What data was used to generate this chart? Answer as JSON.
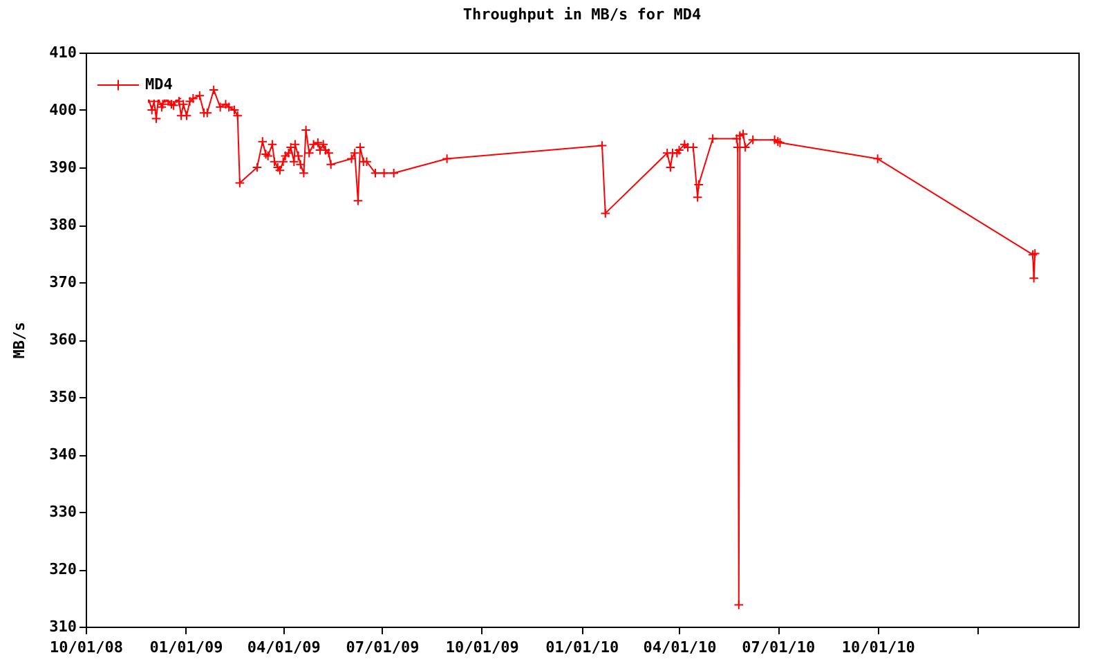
{
  "chart_data": {
    "type": "line",
    "title": "Throughput in MB/s for MD4",
    "ylabel": "MB/s",
    "x": [
      "2008-11-28",
      "2008-12-01",
      "2008-12-03",
      "2008-12-05",
      "2008-12-07",
      "2008-12-10",
      "2008-12-11",
      "2008-12-13",
      "2008-12-16",
      "2008-12-19",
      "2008-12-21",
      "2008-12-24",
      "2008-12-26",
      "2008-12-28",
      "2008-12-30",
      "2009-01-02",
      "2009-01-05",
      "2009-01-08",
      "2009-01-14",
      "2009-01-18",
      "2009-01-21",
      "2009-01-27",
      "2009-02-02",
      "2009-02-07",
      "2009-02-10",
      "2009-02-15",
      "2009-02-18",
      "2009-02-20",
      "2009-03-08",
      "2009-03-13",
      "2009-03-16",
      "2009-03-18",
      "2009-03-22",
      "2009-03-24",
      "2009-03-27",
      "2009-03-29",
      "2009-04-01",
      "2009-04-03",
      "2009-04-06",
      "2009-04-08",
      "2009-04-11",
      "2009-04-12",
      "2009-04-15",
      "2009-04-17",
      "2009-04-20",
      "2009-04-22",
      "2009-04-25",
      "2009-04-29",
      "2009-05-03",
      "2009-05-05",
      "2009-05-08",
      "2009-05-10",
      "2009-05-13",
      "2009-05-15",
      "2009-06-03",
      "2009-06-06",
      "2009-06-09",
      "2009-06-11",
      "2009-06-14",
      "2009-06-17",
      "2009-06-25",
      "2009-07-03",
      "2009-07-12",
      "2009-08-30",
      "2010-01-20",
      "2010-01-23",
      "2010-03-21",
      "2010-03-24",
      "2010-03-26",
      "2010-03-30",
      "2010-04-01",
      "2010-04-06",
      "2010-04-09",
      "2010-04-14",
      "2010-04-18",
      "2010-04-19",
      "2010-05-02",
      "2010-05-24",
      "2010-05-25",
      "2010-05-26",
      "2010-05-27",
      "2010-05-30",
      "2010-06-01",
      "2010-06-08",
      "2010-06-28",
      "2010-07-01",
      "2010-07-03",
      "2010-10-01",
      "2011-02-21",
      "2011-02-22",
      "2011-02-23"
    ],
    "series": [
      {
        "name": "MD4",
        "color": "#ff0000",
        "values": [
          402,
          400,
          401.5,
          398.5,
          402,
          400.5,
          401,
          402,
          401.5,
          401,
          400.8,
          402,
          401.5,
          399,
          401,
          399,
          401.5,
          402,
          402.5,
          399.5,
          399.5,
          403.5,
          400.5,
          401,
          400.5,
          400,
          399,
          387.3,
          390,
          394.5,
          392.3,
          392,
          394,
          391,
          390,
          389.5,
          391,
          392,
          392.5,
          393.5,
          391,
          394,
          392,
          390.5,
          389,
          396.5,
          392.5,
          394,
          394.3,
          393,
          394,
          393,
          392.5,
          390.5,
          391.5,
          392.5,
          384.2,
          393.5,
          391,
          391,
          389,
          389,
          389,
          391.5,
          393.8,
          382,
          392.5,
          390,
          392.5,
          392.5,
          393,
          394,
          393.5,
          393.5,
          384.8,
          387,
          395,
          395,
          393.5,
          313.8,
          395.5,
          395.8,
          393.5,
          394.8,
          394.8,
          394.5,
          394.3,
          391.5,
          374.8,
          370.7,
          375
        ]
      }
    ],
    "xlim": [
      "2008-10-01",
      "2011-04-04"
    ],
    "xticks": [
      {
        "value": "2008-10-01",
        "label": "10/01/08"
      },
      {
        "value": "2009-01-01",
        "label": "01/01/09"
      },
      {
        "value": "2009-04-01",
        "label": "04/01/09"
      },
      {
        "value": "2009-07-01",
        "label": "07/01/09"
      },
      {
        "value": "2009-10-01",
        "label": "10/01/09"
      },
      {
        "value": "2010-01-01",
        "label": "01/01/10"
      },
      {
        "value": "2010-04-01",
        "label": "04/01/10"
      },
      {
        "value": "2010-07-01",
        "label": "07/01/10"
      },
      {
        "value": "2010-10-01",
        "label": "10/01/10"
      },
      {
        "value": "2011-01-01",
        "label": null
      }
    ],
    "ylim": [
      310,
      410
    ],
    "yticks": [
      310,
      320,
      330,
      340,
      350,
      360,
      370,
      380,
      390,
      400,
      410
    ],
    "grid": false,
    "legend": "top left",
    "marker": "cross",
    "line_style": "solid"
  }
}
